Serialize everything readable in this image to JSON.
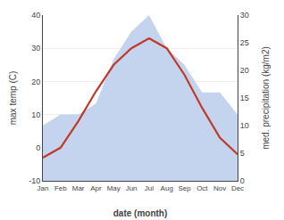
{
  "chart_data": {
    "type": "line",
    "xlabel": "date (month)",
    "ylabel": "max temp (C)",
    "y2label": "med. precipitation (kg/m2)",
    "categories": [
      "Jan",
      "Feb",
      "Mar",
      "Apr",
      "May",
      "Jun",
      "Jul",
      "Aug",
      "Sep",
      "Oct",
      "Nov",
      "Dec"
    ],
    "series": [
      {
        "type": "line",
        "color": "#c0392b",
        "values": [
          -3,
          0,
          8,
          17,
          25,
          30,
          33,
          30,
          22,
          12,
          3,
          -2
        ]
      },
      {
        "type": "area",
        "axis": "y2",
        "color": "#c5d4ee",
        "values": [
          10,
          12,
          12,
          14,
          22,
          27,
          30,
          24,
          21,
          16,
          16,
          12
        ]
      }
    ],
    "ylim": [
      -10,
      40
    ],
    "yticks": [
      -10,
      0,
      10,
      20,
      30,
      40
    ],
    "y2lim": [
      0,
      30
    ],
    "y2ticks": [
      0,
      5,
      10,
      15,
      20,
      25,
      30
    ],
    "grid": true
  }
}
